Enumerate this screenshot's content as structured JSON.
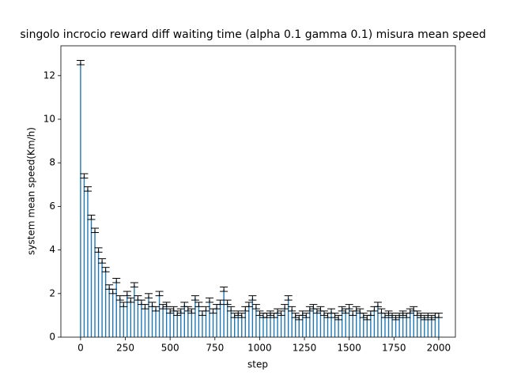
{
  "chart_data": {
    "type": "bar",
    "title": "singolo incrocio reward diff waiting time (alpha 0.1 gamma 0.1) misura mean speed",
    "xlabel": "step",
    "ylabel": "system mean speed(Km/h)",
    "x": [
      0,
      20,
      40,
      60,
      80,
      100,
      120,
      140,
      160,
      180,
      200,
      220,
      240,
      260,
      280,
      300,
      320,
      340,
      360,
      380,
      400,
      420,
      440,
      460,
      480,
      500,
      520,
      540,
      560,
      580,
      600,
      620,
      640,
      660,
      680,
      700,
      720,
      740,
      760,
      780,
      800,
      820,
      840,
      860,
      880,
      900,
      920,
      940,
      960,
      980,
      1000,
      1020,
      1040,
      1060,
      1080,
      1100,
      1120,
      1140,
      1160,
      1180,
      1200,
      1220,
      1240,
      1260,
      1280,
      1300,
      1320,
      1340,
      1360,
      1380,
      1400,
      1420,
      1440,
      1460,
      1480,
      1500,
      1520,
      1540,
      1560,
      1580,
      1600,
      1620,
      1640,
      1660,
      1680,
      1700,
      1720,
      1740,
      1760,
      1780,
      1800,
      1820,
      1840,
      1860,
      1880,
      1900,
      1920,
      1940,
      1960,
      1980,
      2000
    ],
    "values": [
      12.6,
      7.4,
      6.8,
      5.5,
      4.9,
      4.0,
      3.5,
      3.1,
      2.3,
      2.1,
      2.6,
      1.8,
      1.5,
      2.0,
      1.7,
      2.4,
      1.8,
      1.6,
      1.4,
      1.9,
      1.5,
      1.3,
      2.0,
      1.4,
      1.5,
      1.2,
      1.3,
      1.1,
      1.2,
      1.5,
      1.3,
      1.2,
      1.8,
      1.5,
      1.1,
      1.3,
      1.7,
      1.2,
      1.4,
      1.6,
      2.2,
      1.6,
      1.3,
      1.0,
      1.1,
      1.0,
      1.3,
      1.5,
      1.8,
      1.4,
      1.1,
      1.0,
      1.0,
      1.1,
      1.0,
      1.2,
      1.1,
      1.4,
      1.8,
      1.3,
      1.0,
      0.9,
      1.1,
      1.0,
      1.3,
      1.4,
      1.2,
      1.3,
      1.1,
      1.0,
      1.2,
      1.0,
      0.9,
      1.3,
      1.2,
      1.4,
      1.1,
      1.3,
      1.2,
      1.0,
      0.9,
      1.1,
      1.3,
      1.5,
      1.2,
      1.0,
      1.1,
      1.0,
      0.9,
      1.0,
      1.1,
      1.0,
      1.2,
      1.3,
      1.1,
      1.0,
      0.9,
      1.0,
      0.9,
      1.0,
      1.0
    ],
    "errors": [
      0.1,
      0.1,
      0.1,
      0.1,
      0.1,
      0.1,
      0.1,
      0.1,
      0.1,
      0.1,
      0.1,
      0.1,
      0.1,
      0.1,
      0.1,
      0.1,
      0.1,
      0.1,
      0.1,
      0.1,
      0.1,
      0.1,
      0.1,
      0.1,
      0.1,
      0.1,
      0.1,
      0.1,
      0.1,
      0.1,
      0.1,
      0.1,
      0.1,
      0.1,
      0.1,
      0.1,
      0.1,
      0.1,
      0.1,
      0.1,
      0.1,
      0.1,
      0.1,
      0.1,
      0.1,
      0.1,
      0.1,
      0.1,
      0.1,
      0.1,
      0.1,
      0.1,
      0.1,
      0.1,
      0.1,
      0.1,
      0.1,
      0.1,
      0.1,
      0.1,
      0.1,
      0.1,
      0.1,
      0.1,
      0.1,
      0.1,
      0.1,
      0.1,
      0.1,
      0.1,
      0.1,
      0.1,
      0.1,
      0.1,
      0.1,
      0.1,
      0.1,
      0.1,
      0.1,
      0.1,
      0.1,
      0.1,
      0.1,
      0.1,
      0.1,
      0.1,
      0.1,
      0.1,
      0.1,
      0.1,
      0.1,
      0.1,
      0.1,
      0.1,
      0.1,
      0.1,
      0.1,
      0.1,
      0.1,
      0.1,
      0.1
    ],
    "color": "#1f77b4",
    "error_color": "#000000",
    "xlim": [
      -110,
      2093
    ],
    "ylim": [
      0,
      13.37
    ],
    "xticks": [
      0,
      250,
      500,
      750,
      1000,
      1250,
      1500,
      1750,
      2000
    ],
    "yticks": [
      0,
      2,
      4,
      6,
      8,
      10,
      12
    ]
  }
}
